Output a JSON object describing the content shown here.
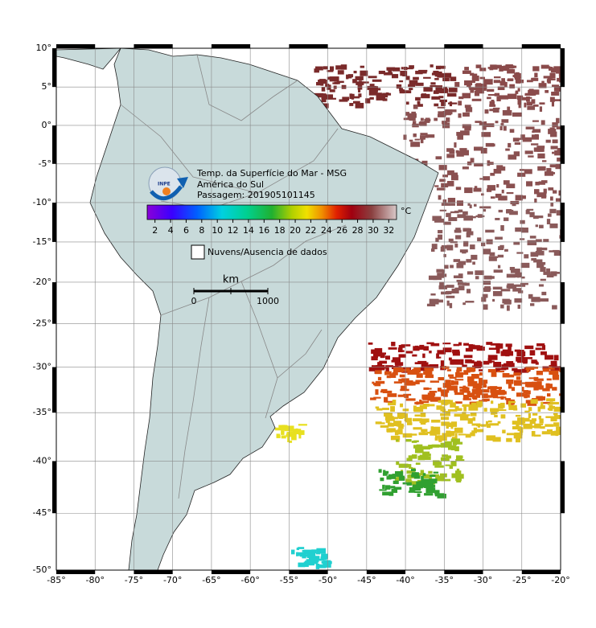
{
  "map": {
    "title": "Temp. da Superfície do Mar - MSG",
    "region": "América do Sul",
    "pass": "Passagem: 201905101145",
    "colorbar": {
      "unit": "°C",
      "range": [
        1,
        33
      ],
      "ticks": [
        2,
        4,
        6,
        8,
        10,
        12,
        14,
        16,
        18,
        20,
        22,
        24,
        26,
        28,
        30,
        32
      ]
    },
    "legend": "Nuvens/Ausencia de dados",
    "scale": {
      "unit": "km",
      "labels": [
        "0",
        "1000"
      ]
    },
    "lon_lim": [
      -85,
      -20
    ],
    "lat_lim": [
      10,
      -50
    ],
    "lon_ticks": [
      {
        "value": -85,
        "label": "-85°"
      },
      {
        "value": -80,
        "label": "-80°"
      },
      {
        "value": -75,
        "label": "-75°"
      },
      {
        "value": -70,
        "label": "-70°"
      },
      {
        "value": -65,
        "label": "-65°"
      },
      {
        "value": -60,
        "label": "-60°"
      },
      {
        "value": -55,
        "label": "-55°"
      },
      {
        "value": -50,
        "label": "-50°"
      },
      {
        "value": -45,
        "label": "-45°"
      },
      {
        "value": -40,
        "label": "-40°"
      },
      {
        "value": -35,
        "label": "-35°"
      },
      {
        "value": -30,
        "label": "-30°"
      },
      {
        "value": -25,
        "label": "-25°"
      },
      {
        "value": -20,
        "label": "-20°"
      }
    ],
    "lat_ticks": [
      {
        "value": 10,
        "label": "10°"
      },
      {
        "value": 5,
        "label": "5°"
      },
      {
        "value": 0,
        "label": "0°"
      },
      {
        "value": -5,
        "label": "-5°"
      },
      {
        "value": -10,
        "label": "-10°"
      },
      {
        "value": -15,
        "label": "-15°"
      },
      {
        "value": -20,
        "label": "-20°"
      },
      {
        "value": -25,
        "label": "-25°"
      },
      {
        "value": -30,
        "label": "-30°"
      },
      {
        "value": -35,
        "label": "-35°"
      },
      {
        "value": -40,
        "label": "-40°"
      },
      {
        "value": -45,
        "label": "-45°"
      },
      {
        "value": -50,
        "label": "-50°"
      }
    ]
  }
}
